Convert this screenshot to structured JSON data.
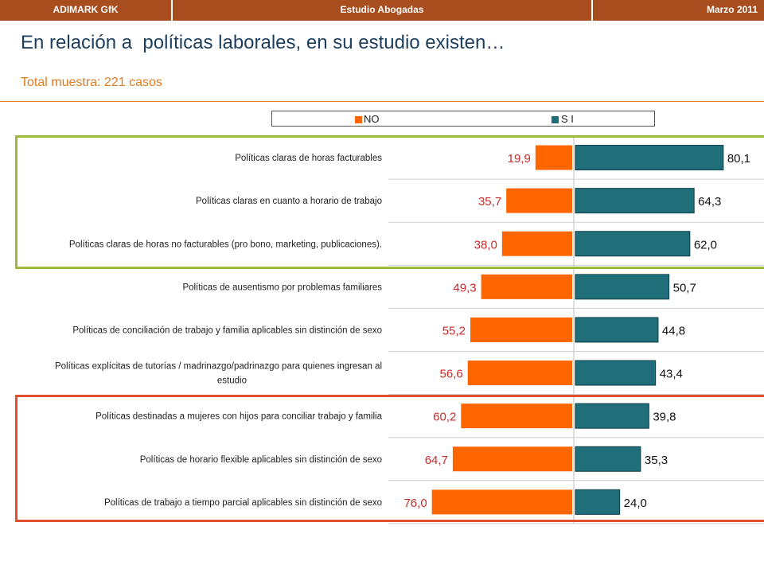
{
  "header": {
    "left": "ADIMARK GfK",
    "center": "Estudio Abogadas",
    "right": "Marzo 2011"
  },
  "title": "En relación a  políticas laborales, en su estudio existen…",
  "subtitle": "Total muestra: 221 casos",
  "colors": {
    "header_bg": "#a84e1e",
    "no": "#ff6600",
    "si": "#1f6e7a",
    "accent": "#e07b20",
    "green_frame": "#9dba3c",
    "red_frame": "#e0502a"
  },
  "chart_data": {
    "type": "bar",
    "orientation": "horizontal-diverging",
    "legend_position": "top",
    "grid": false,
    "categories": [
      "Políticas claras de horas facturables",
      "Políticas claras en cuanto a horario de trabajo",
      "Políticas claras de horas no facturables (pro bono, marketing, publicaciones).",
      "Políticas de ausentismo por problemas familiares",
      "Políticas de conciliación de trabajo y familia aplicables sin distinción de sexo",
      "Políticas explícitas de tutorías / madrinazgo/padrinazgo para quienes ingresan al estudio",
      "Políticas destinadas a mujeres con hijos para conciliar trabajo y familia",
      "Políticas de  horario flexible aplicables sin distinción de sexo",
      "Políticas de trabajo a tiempo parcial aplicables sin distinción de sexo"
    ],
    "series": [
      {
        "name": "NO",
        "values": [
          19.9,
          35.7,
          38.0,
          49.3,
          55.2,
          56.6,
          60.2,
          64.7,
          76.0
        ],
        "labels": [
          "19,9",
          "35,7",
          "38,0",
          "49,3",
          "55,2",
          "56,6",
          "60,2",
          "64,7",
          "76,0"
        ]
      },
      {
        "name": "S I",
        "values": [
          80.1,
          64.3,
          62.0,
          50.7,
          44.8,
          43.4,
          39.8,
          35.3,
          24.0
        ],
        "labels": [
          "80,1",
          "64,3",
          "62,0",
          "50,7",
          "44,8",
          "43,4",
          "39,8",
          "35,3",
          "24,0"
        ]
      }
    ]
  }
}
